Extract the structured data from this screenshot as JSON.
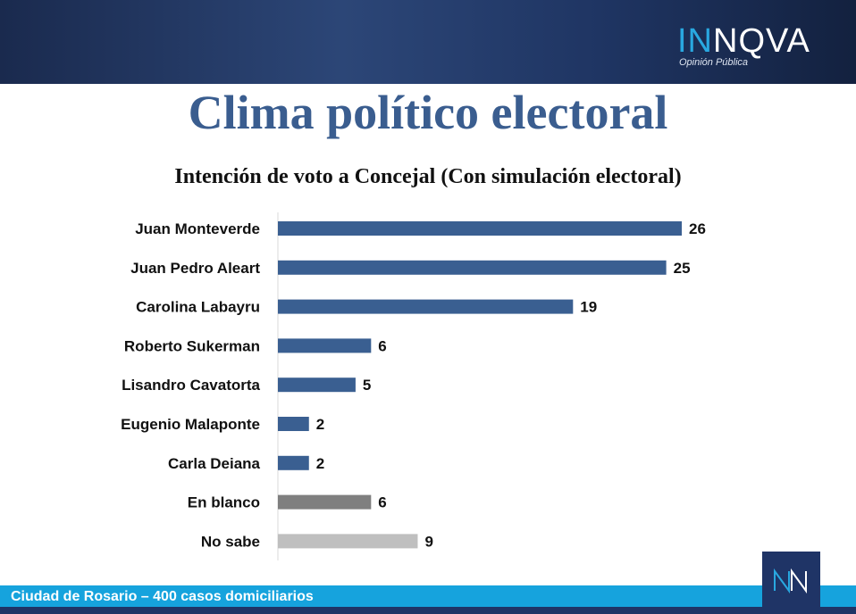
{
  "header": {
    "logo": {
      "brand_prefix": "IN",
      "brand_rest": "NQVA",
      "tagline": "Opinión Pública"
    }
  },
  "page": {
    "title": "Clima político electoral",
    "subtitle": "Intención de voto a Concejal (Con simulación electoral)"
  },
  "footer": {
    "text": "Ciudad de Rosario – 400 casos domiciliarios"
  },
  "colors": {
    "primary_bar": "#3a5f91",
    "blank_bar": "#7f7f7f",
    "dont_know_bar": "#bfbfbf",
    "title": "#3a5d8f",
    "footer_band": "#16a3dd",
    "header_dark": "#1f3466"
  },
  "chart_data": {
    "type": "bar",
    "orientation": "horizontal",
    "categories": [
      "Juan Monteverde",
      "Juan Pedro Aleart",
      "Carolina Labayru",
      "Roberto Sukerman",
      "Lisandro Cavatorta",
      "Eugenio Malaponte",
      "Carla Deiana",
      "En blanco",
      "No sabe"
    ],
    "values": [
      26,
      25,
      19,
      6,
      5,
      2,
      2,
      6,
      9
    ],
    "bar_colors": [
      "#3a5f91",
      "#3a5f91",
      "#3a5f91",
      "#3a5f91",
      "#3a5f91",
      "#3a5f91",
      "#3a5f91",
      "#7f7f7f",
      "#bfbfbf"
    ],
    "title": "Intención de voto a Concejal (Con simulación electoral)",
    "xlim": [
      0,
      26
    ],
    "data_labels": true,
    "grid": false,
    "legend": "none"
  }
}
